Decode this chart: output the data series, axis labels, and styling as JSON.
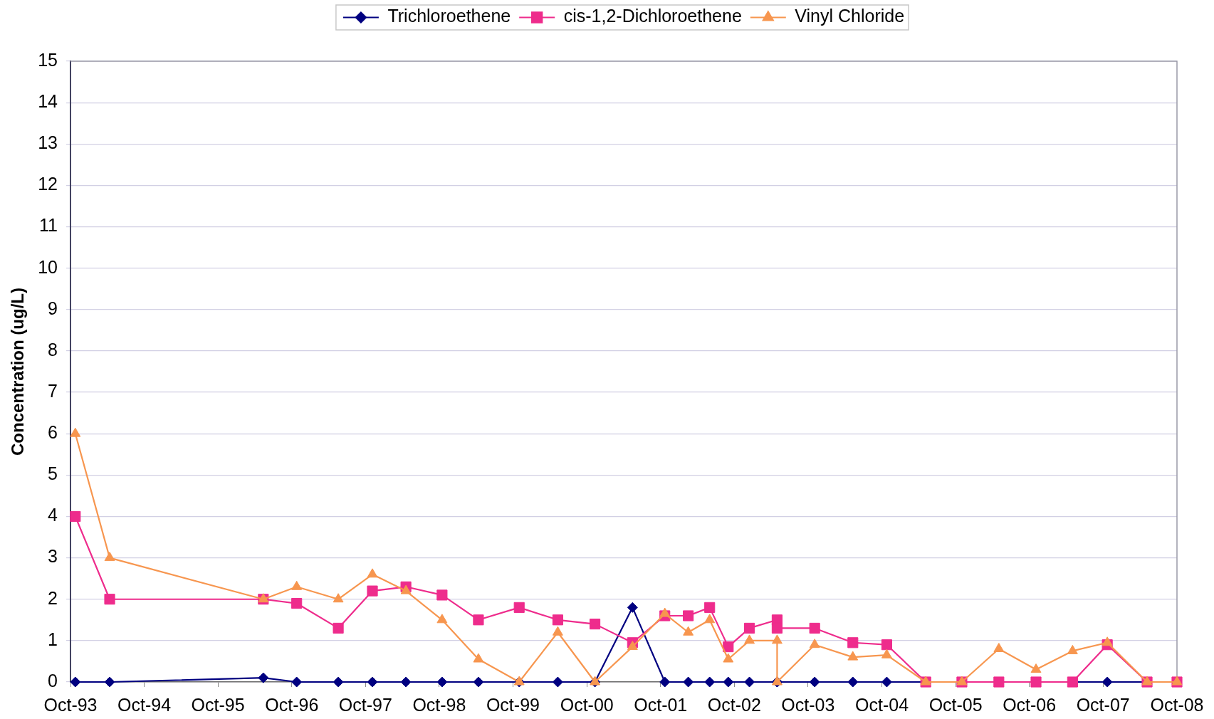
{
  "chart_data": {
    "type": "line",
    "ylabel": "Concentration (ug/L)",
    "legend": "top",
    "grid": "y",
    "x": [
      "1993-10-25",
      "1994-04-13",
      "1996-05-13",
      "1996-10-25",
      "1997-05-19",
      "1997-11-04",
      "1998-04-19",
      "1998-10-15",
      "1999-04-13",
      "1999-11-01",
      "2000-05-10",
      "2000-11-10",
      "2001-05-15",
      "2001-10-22",
      "2002-02-15",
      "2002-06-01",
      "2002-09-01",
      "2002-12-15",
      "2003-05-01",
      "2003-05-01",
      "2003-11-03",
      "2004-05-10",
      "2004-10-25",
      "2005-05-06",
      "2005-11-01",
      "2006-05-03",
      "2006-11-03",
      "2007-05-03",
      "2007-10-22",
      "2008-05-06",
      "2008-10-01"
    ],
    "xlim": [
      "1993-10",
      "2008-10"
    ],
    "xticks": [
      {
        "value": "1993-10",
        "label": "Oct-93"
      },
      {
        "value": "1994-10",
        "label": "Oct-94"
      },
      {
        "value": "1995-10",
        "label": "Oct-95"
      },
      {
        "value": "1996-10",
        "label": "Oct-96"
      },
      {
        "value": "1997-10",
        "label": "Oct-97"
      },
      {
        "value": "1998-10",
        "label": "Oct-98"
      },
      {
        "value": "1999-10",
        "label": "Oct-99"
      },
      {
        "value": "2000-10",
        "label": "Oct-00"
      },
      {
        "value": "2001-10",
        "label": "Oct-01"
      },
      {
        "value": "2002-10",
        "label": "Oct-02"
      },
      {
        "value": "2003-10",
        "label": "Oct-03"
      },
      {
        "value": "2004-10",
        "label": "Oct-04"
      },
      {
        "value": "2005-10",
        "label": "Oct-05"
      },
      {
        "value": "2006-10",
        "label": "Oct-06"
      },
      {
        "value": "2007-10",
        "label": "Oct-07"
      },
      {
        "value": "2008-10",
        "label": "Oct-08"
      }
    ],
    "ylim": [
      0,
      15
    ],
    "yticks": [
      0,
      1,
      2,
      3,
      4,
      5,
      6,
      7,
      8,
      9,
      10,
      11,
      12,
      13,
      14,
      15
    ],
    "series": [
      {
        "name": "Trichloroethene",
        "color": "#000080",
        "marker": "diamond",
        "values": [
          0,
          0,
          0.1,
          0,
          0,
          0,
          0,
          0,
          0,
          0,
          0,
          0,
          1.8,
          0,
          0,
          0,
          0,
          0,
          0,
          0,
          0,
          0,
          0,
          0,
          0,
          0,
          0,
          0,
          0,
          0,
          0
        ]
      },
      {
        "name": "cis-1,2-Dichloroethene",
        "color": "#ee2c8c",
        "marker": "square",
        "values": [
          4,
          2,
          2,
          1.9,
          1.3,
          2.2,
          2.3,
          2.1,
          1.5,
          1.8,
          1.5,
          1.4,
          0.95,
          1.6,
          1.6,
          1.8,
          0.85,
          1.3,
          1.5,
          1.3,
          1.3,
          0.95,
          0.9,
          0,
          0,
          0,
          0,
          0,
          0.9,
          0,
          0
        ]
      },
      {
        "name": "Vinyl Chloride",
        "color": "#f7964f",
        "marker": "triangle",
        "values": [
          6,
          3,
          2,
          2.3,
          2,
          2.6,
          2.2,
          1.5,
          0.55,
          0,
          1.2,
          0,
          0.85,
          1.65,
          1.2,
          1.5,
          0.55,
          1,
          1,
          0,
          0.9,
          0.6,
          0.65,
          0,
          0,
          0.8,
          0.3,
          0.75,
          0.95,
          0,
          0
        ]
      }
    ]
  }
}
